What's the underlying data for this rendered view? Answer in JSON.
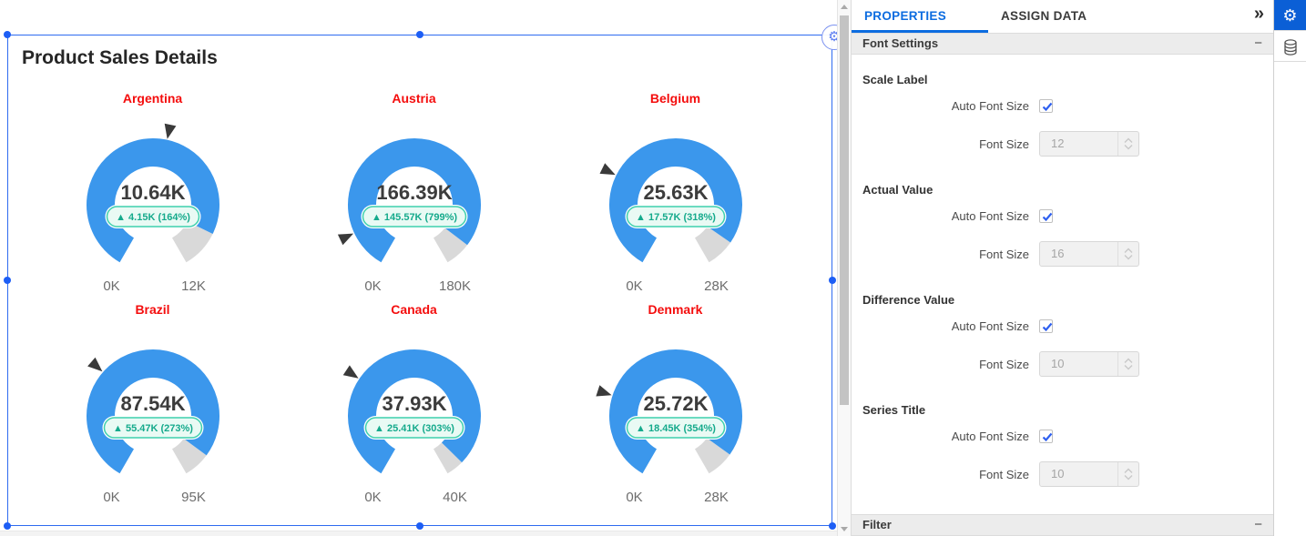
{
  "canvas": {
    "widget_title": "Product Sales Details"
  },
  "chart_data": {
    "type": "gauge",
    "title": "Product Sales Details",
    "layout": {
      "columns": 3,
      "rows": 2,
      "arc_start_deg": 120,
      "arc_sweep_deg": 300
    },
    "colors": {
      "arc": "#3b97ec",
      "remainder": "#d9d9d9",
      "pointer": "#3a3a3a",
      "series_title": "#f40d0d",
      "value_text": "#3c3c3c",
      "diff_text": "#15aa8c",
      "diff_bg": "#e9faf4",
      "diff_border": "#3ed0ad",
      "scale_label": "#6d6d6d"
    },
    "gauges": [
      {
        "series": "Argentina",
        "value": 10.64,
        "max": 12,
        "target": 6.49,
        "value_label": "10.64K",
        "diff_label": "▲ 4.15K (164%)",
        "min_label": "0K",
        "max_label": "12K"
      },
      {
        "series": "Austria",
        "value": 166.39,
        "max": 180,
        "target": 20.82,
        "value_label": "166.39K",
        "diff_label": "▲ 145.57K (799%)",
        "min_label": "0K",
        "max_label": "180K"
      },
      {
        "series": "Belgium",
        "value": 25.63,
        "max": 28,
        "target": 8.06,
        "value_label": "25.63K",
        "diff_label": "▲ 17.57K (318%)",
        "min_label": "0K",
        "max_label": "28K"
      },
      {
        "series": "Brazil",
        "value": 87.54,
        "max": 95,
        "target": 32.07,
        "value_label": "87.54K",
        "diff_label": "▲ 55.47K (273%)",
        "min_label": "0K",
        "max_label": "95K"
      },
      {
        "series": "Canada",
        "value": 37.93,
        "max": 40,
        "target": 12.52,
        "value_label": "37.93K",
        "diff_label": "▲ 25.41K (303%)",
        "min_label": "0K",
        "max_label": "40K"
      },
      {
        "series": "Denmark",
        "value": 25.72,
        "max": 28,
        "target": 7.27,
        "value_label": "25.72K",
        "diff_label": "▲ 18.45K (354%)",
        "min_label": "0K",
        "max_label": "28K"
      }
    ]
  },
  "properties_panel": {
    "tabs": [
      {
        "label": "PROPERTIES",
        "active": true
      },
      {
        "label": "ASSIGN DATA",
        "active": false
      }
    ],
    "collapse_panel_icon": "»",
    "font_settings": {
      "title": "Font Settings",
      "collapse_icon": "−",
      "auto_label": "Auto Font Size",
      "size_label": "Font Size",
      "groups": [
        {
          "label": "Scale Label",
          "auto_checked": true,
          "font_size": "12"
        },
        {
          "label": "Actual Value",
          "auto_checked": true,
          "font_size": "16"
        },
        {
          "label": "Difference Value",
          "auto_checked": true,
          "font_size": "10"
        },
        {
          "label": "Series Title",
          "auto_checked": true,
          "font_size": "10"
        }
      ]
    },
    "filter": {
      "title": "Filter",
      "collapse_icon": "−"
    }
  },
  "right_toolbar": {
    "items": [
      {
        "name": "widget-settings",
        "active": true
      },
      {
        "name": "data-source",
        "active": false
      }
    ]
  },
  "theme": {
    "accent_blue": "#0c6ce0",
    "selection_blue": "#2e6bf0",
    "toolbar_active_blue": "#0b5fd6"
  }
}
